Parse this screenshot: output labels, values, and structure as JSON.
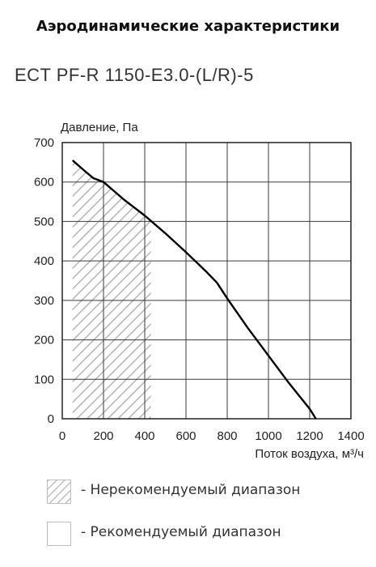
{
  "header": {
    "title": "Аэродинамические характеристики",
    "model": "ECT PF-R 1150-E3.0-(L/R)-5"
  },
  "chart_data": {
    "type": "line",
    "ylabel": "Давление, Па",
    "xlabel": "Поток воздуха, м³/ч",
    "xlim": [
      0,
      1400
    ],
    "ylim": [
      0,
      700
    ],
    "x_ticks": [
      0,
      200,
      400,
      600,
      800,
      1000,
      1200,
      1400
    ],
    "y_ticks": [
      0,
      100,
      200,
      300,
      400,
      500,
      600,
      700
    ],
    "grid": true,
    "series": [
      {
        "x": [
          50,
          100,
          150,
          200,
          300,
          400,
          500,
          600,
          700,
          750,
          800,
          900,
          1000,
          1100,
          1200,
          1230
        ],
        "y": [
          655,
          632,
          610,
          600,
          555,
          515,
          470,
          422,
          372,
          345,
          305,
          230,
          160,
          90,
          25,
          0
        ],
        "color": "#000000"
      }
    ],
    "hatched_region": {
      "x_range": [
        50,
        430
      ],
      "color": "#b5b5b5"
    }
  },
  "legend": {
    "items": [
      {
        "label": "- Нерекомендуемый диапазон",
        "pattern": "hatched"
      },
      {
        "label": "- Рекомендуемый диапазон",
        "pattern": "plain"
      }
    ]
  }
}
